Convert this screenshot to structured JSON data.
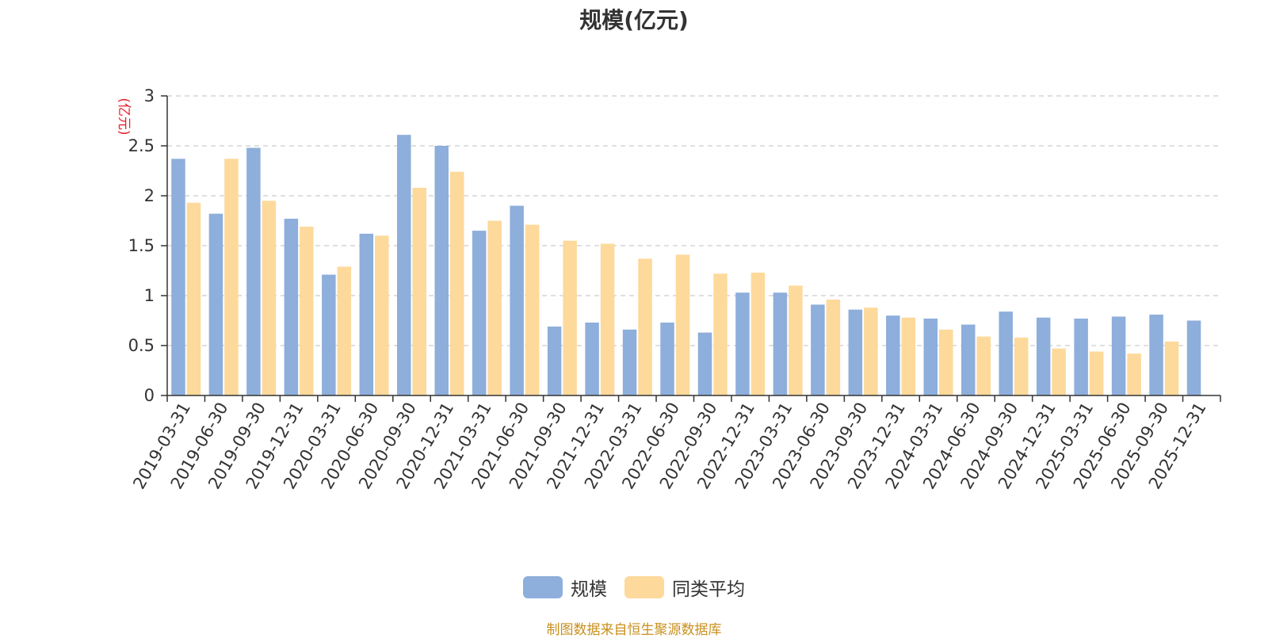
{
  "chart_data": {
    "type": "bar",
    "title": "规模(亿元)",
    "ylabel": "(亿元)",
    "xlabel": "",
    "ylim": [
      0,
      3
    ],
    "yticks": [
      0,
      0.5,
      1,
      1.5,
      2,
      2.5,
      3
    ],
    "grid": true,
    "legend_position": "bottom",
    "categories": [
      "2019-03-31",
      "2019-06-30",
      "2019-09-30",
      "2019-12-31",
      "2020-03-31",
      "2020-06-30",
      "2020-09-30",
      "2020-12-31",
      "2021-03-31",
      "2021-06-30",
      "2021-09-30",
      "2021-12-31",
      "2022-03-31",
      "2022-06-30",
      "2022-09-30",
      "2022-12-31",
      "2023-03-31",
      "2023-06-30",
      "2023-09-30",
      "2023-12-31",
      "2024-03-31",
      "2024-06-30",
      "2024-09-30",
      "2024-12-31",
      "2025-03-31",
      "2025-06-30",
      "2025-09-30",
      "2025-12-31"
    ],
    "series": [
      {
        "name": "规模",
        "color": "#8eaedb",
        "values": [
          2.37,
          1.82,
          2.48,
          1.77,
          1.21,
          1.62,
          2.61,
          2.5,
          1.65,
          1.9,
          0.69,
          0.73,
          0.66,
          0.73,
          0.63,
          1.03,
          1.03,
          0.91,
          0.86,
          0.8,
          0.77,
          0.71,
          0.84,
          0.78,
          0.77,
          0.79,
          0.81,
          0.75
        ]
      },
      {
        "name": "同类平均",
        "color": "#fdd99b",
        "values": [
          1.93,
          2.37,
          1.95,
          1.69,
          1.29,
          1.6,
          2.08,
          2.24,
          1.75,
          1.71,
          1.55,
          1.52,
          1.37,
          1.41,
          1.22,
          1.23,
          1.1,
          0.96,
          0.88,
          0.78,
          0.66,
          0.59,
          0.58,
          0.47,
          0.44,
          0.42,
          0.54,
          null
        ]
      }
    ]
  },
  "source_note": "制图数据来自恒生聚源数据库"
}
